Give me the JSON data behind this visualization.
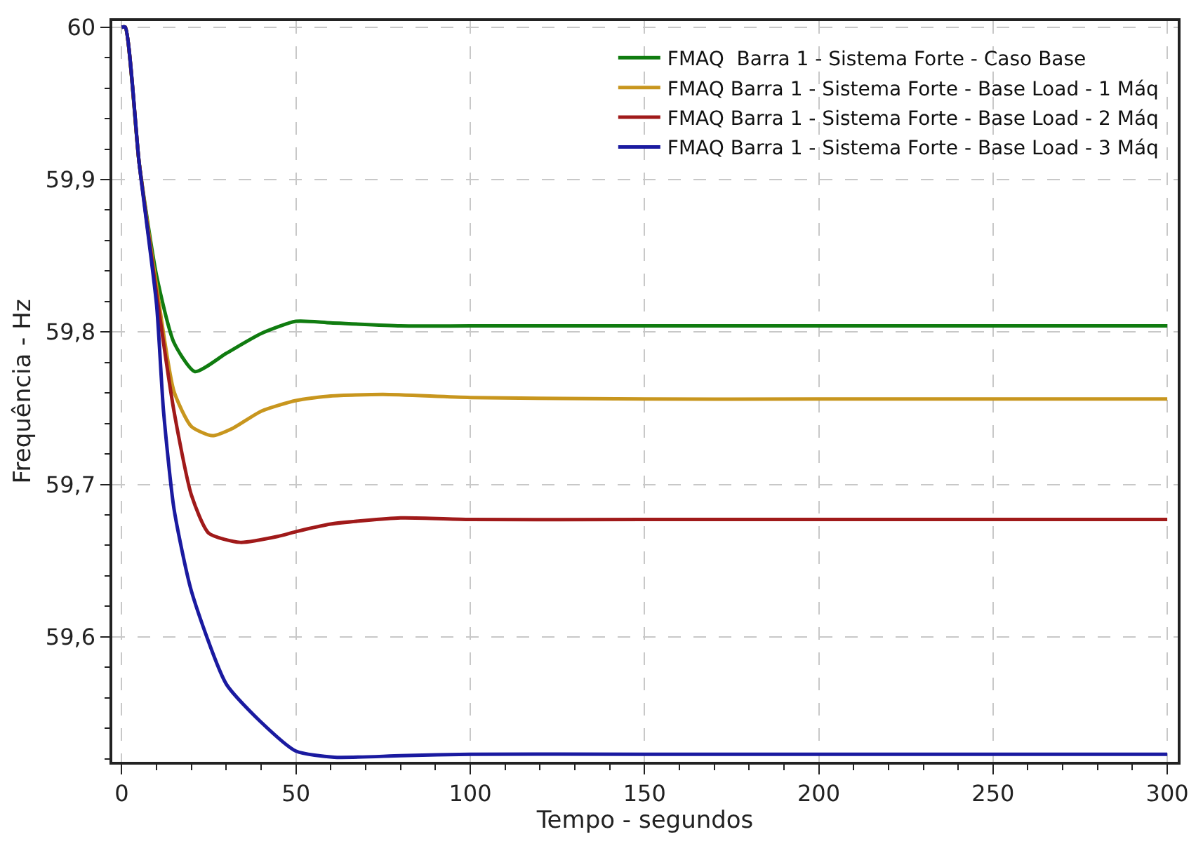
{
  "chart_data": {
    "type": "line",
    "xlabel": "Tempo - segundos",
    "ylabel": "Frequência - Hz",
    "xlim": [
      -2.7,
      303
    ],
    "ylim": [
      59.518,
      60.004
    ],
    "xticks": [
      0,
      50,
      100,
      150,
      200,
      250,
      300
    ],
    "yticks": [
      {
        "value": 59.6,
        "label": "59,6"
      },
      {
        "value": 59.7,
        "label": "59,7"
      },
      {
        "value": 59.8,
        "label": "59,8"
      },
      {
        "value": 59.9,
        "label": "59,9"
      },
      60
    ],
    "grid": true,
    "legend": "top right",
    "marker": "none",
    "line_style": "solid",
    "series": [
      {
        "name": "FMAQ  Barra 1 - Sistema Forte - Caso Base",
        "color": "#107c10",
        "x": [
          0,
          1,
          5,
          10,
          15,
          21,
          30,
          40,
          50,
          60,
          80,
          100,
          150,
          200,
          250,
          300
        ],
        "values": [
          60.0,
          60.0,
          59.911,
          59.837,
          59.793,
          59.774,
          59.786,
          59.799,
          59.807,
          59.806,
          59.804,
          59.804,
          59.804,
          59.804,
          59.804,
          59.804
        ]
      },
      {
        "name": "FMAQ Barra 1 - Sistema Forte - Base Load - 1 Máq",
        "color": "#c8961e",
        "x": [
          0,
          1,
          5,
          10,
          15,
          20,
          26,
          32,
          40,
          50,
          60,
          75,
          100,
          150,
          200,
          250,
          300
        ],
        "values": [
          60.0,
          60.0,
          59.911,
          59.83,
          59.761,
          59.738,
          59.732,
          59.737,
          59.748,
          59.755,
          59.758,
          59.759,
          59.757,
          59.756,
          59.756,
          59.756,
          59.756
        ]
      },
      {
        "name": "FMAQ Barra 1 - Sistema Forte - Base Load - 2 Máq",
        "color": "#a01a1a",
        "x": [
          0,
          1,
          5,
          10,
          15,
          20,
          25,
          34,
          45,
          50,
          60,
          80,
          100,
          150,
          200,
          250,
          300
        ],
        "values": [
          60.0,
          60.0,
          59.911,
          59.825,
          59.748,
          59.693,
          59.668,
          59.662,
          59.666,
          59.669,
          59.674,
          59.678,
          59.677,
          59.677,
          59.677,
          59.677,
          59.677
        ]
      },
      {
        "name": "FMAQ Barra 1 - Sistema Forte - Base Load - 3 Máq",
        "color": "#1a1aa0",
        "x": [
          0,
          1,
          5,
          10,
          12,
          15,
          20,
          30,
          40,
          50,
          61,
          80,
          100,
          150,
          200,
          250,
          300
        ],
        "values": [
          60.0,
          60.0,
          59.911,
          59.818,
          59.748,
          59.684,
          59.63,
          59.569,
          59.544,
          59.525,
          59.521,
          59.522,
          59.523,
          59.523,
          59.523,
          59.523,
          59.523
        ]
      }
    ]
  }
}
